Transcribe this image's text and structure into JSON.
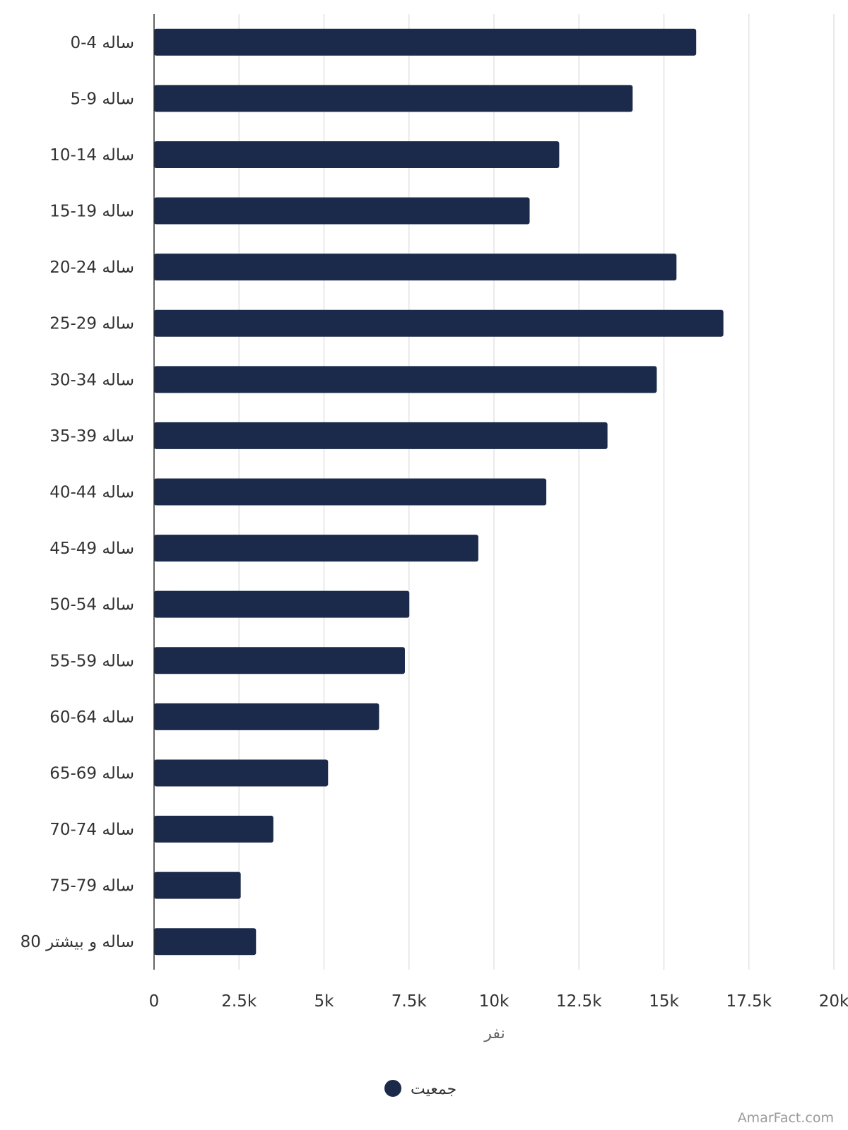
{
  "chart_data": {
    "type": "bar",
    "orientation": "horizontal",
    "categories": [
      "0-4 ساله",
      "5-9 ساله",
      "10-14 ساله",
      "15-19 ساله",
      "20-24 ساله",
      "25-29 ساله",
      "30-34 ساله",
      "35-39 ساله",
      "40-44 ساله",
      "45-49 ساله",
      "50-54 ساله",
      "55-59 ساله",
      "60-64 ساله",
      "65-69 ساله",
      "70-74 ساله",
      "75-79 ساله",
      "80 ساله و بیشتر"
    ],
    "series": [
      {
        "name": "جمعیت",
        "color": "#1b2a4a",
        "values": [
          15950,
          14080,
          11920,
          11050,
          15370,
          16750,
          14790,
          13340,
          11540,
          9540,
          7510,
          7380,
          6620,
          5120,
          3510,
          2550,
          3000
        ]
      }
    ],
    "xlabel": "نفر",
    "ylabel": "",
    "xlim": [
      0,
      20000
    ],
    "x_ticks": [
      0,
      2500,
      5000,
      7500,
      10000,
      12500,
      15000,
      17500,
      20000
    ],
    "x_tick_labels": [
      "0",
      "2.5k",
      "5k",
      "7.5k",
      "10k",
      "12.5k",
      "15k",
      "17.5k",
      "20k"
    ],
    "grid": true,
    "legend_position": "bottom-center"
  },
  "colors": {
    "bar": "#1b2a4a",
    "grid": "#e3e3e3",
    "axis": "#333333"
  },
  "watermark": "AmarFact.com"
}
